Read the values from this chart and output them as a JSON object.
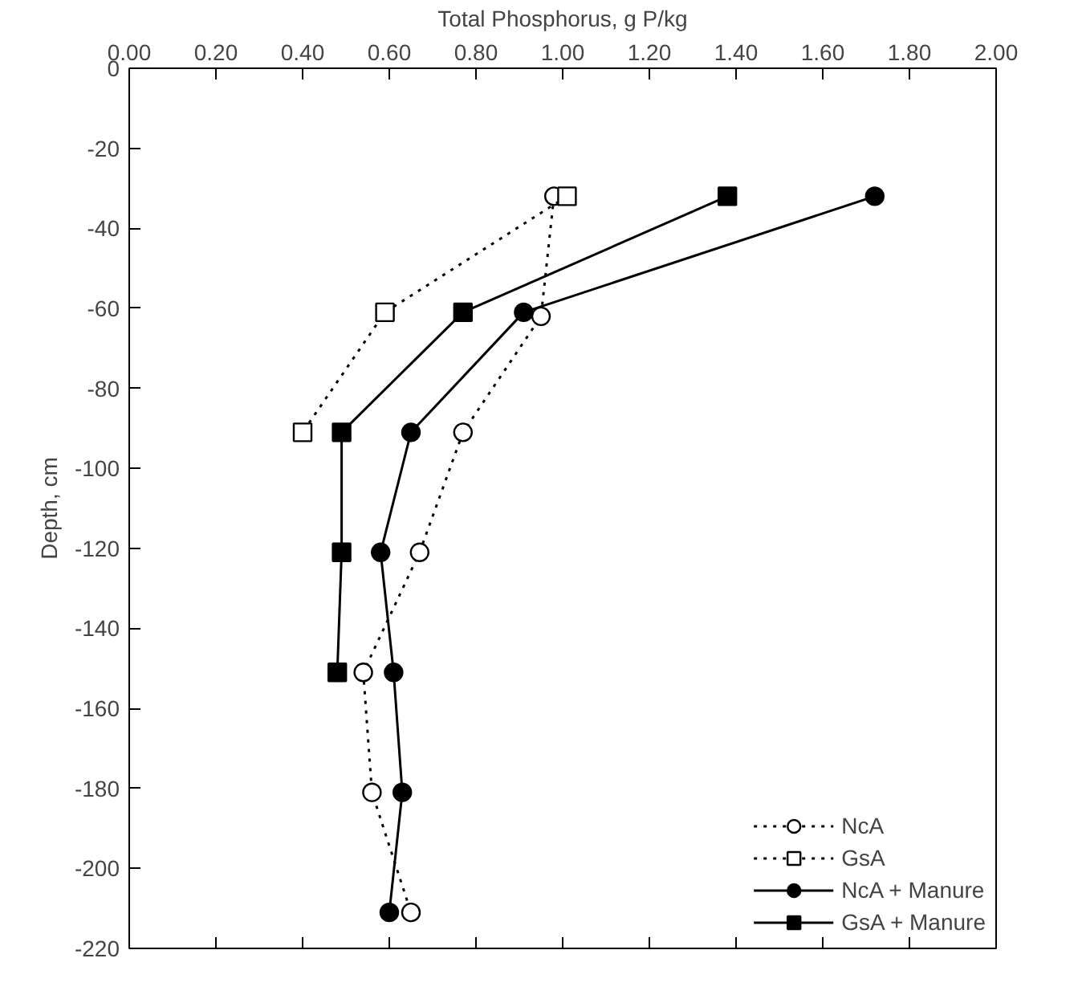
{
  "chart_data": {
    "type": "line",
    "xlabel": "Total Phosphorus, g P/kg",
    "ylabel": "Depth, cm",
    "xlim": [
      0,
      2
    ],
    "xticks": [
      {
        "value": 0,
        "label": "0.00"
      },
      {
        "value": 0.2,
        "label": "0.20"
      },
      {
        "value": 0.4,
        "label": "0.40"
      },
      {
        "value": 0.6,
        "label": "0.60"
      },
      {
        "value": 0.8,
        "label": "0.80"
      },
      {
        "value": 1,
        "label": "1.00"
      },
      {
        "value": 1.2,
        "label": "1.20"
      },
      {
        "value": 1.4,
        "label": "1.40"
      },
      {
        "value": 1.6,
        "label": "1.60"
      },
      {
        "value": 1.8,
        "label": "1.80"
      },
      {
        "value": 2,
        "label": "2.00"
      }
    ],
    "ylim": [
      -220,
      0
    ],
    "yticks": [
      0,
      -20,
      -40,
      -60,
      -80,
      -100,
      -120,
      -140,
      -160,
      -180,
      -200,
      -220
    ],
    "legend": "bottom right",
    "grid": false,
    "series": [
      {
        "name": "NcA",
        "color": "#000000",
        "marker": "circle",
        "line_style": "dotted",
        "x": [
          0.98,
          0.95,
          0.77,
          0.67,
          0.54,
          0.56,
          0.65
        ],
        "values": [
          -32,
          -62,
          -91,
          -121,
          -151,
          -181,
          -211
        ]
      },
      {
        "name": "GsA",
        "color": "#000000",
        "marker": "square",
        "line_style": "dotted",
        "x": [
          1.01,
          0.59,
          0.4
        ],
        "values": [
          -32,
          -61,
          -91
        ]
      },
      {
        "name": "NcA + Manure",
        "color": "#000000",
        "marker": "circle",
        "line_style": "solid",
        "x": [
          1.72,
          0.91,
          0.65,
          0.58,
          0.61,
          0.63,
          0.6
        ],
        "values": [
          -32,
          -61,
          -91,
          -121,
          -151,
          -181,
          -211
        ]
      },
      {
        "name": "GsA + Manure",
        "color": "#000000",
        "marker": "square",
        "line_style": "solid",
        "x": [
          1.38,
          0.77,
          0.49,
          0.49,
          0.48
        ],
        "values": [
          -32,
          -61,
          -91,
          -121,
          -151
        ]
      }
    ]
  }
}
